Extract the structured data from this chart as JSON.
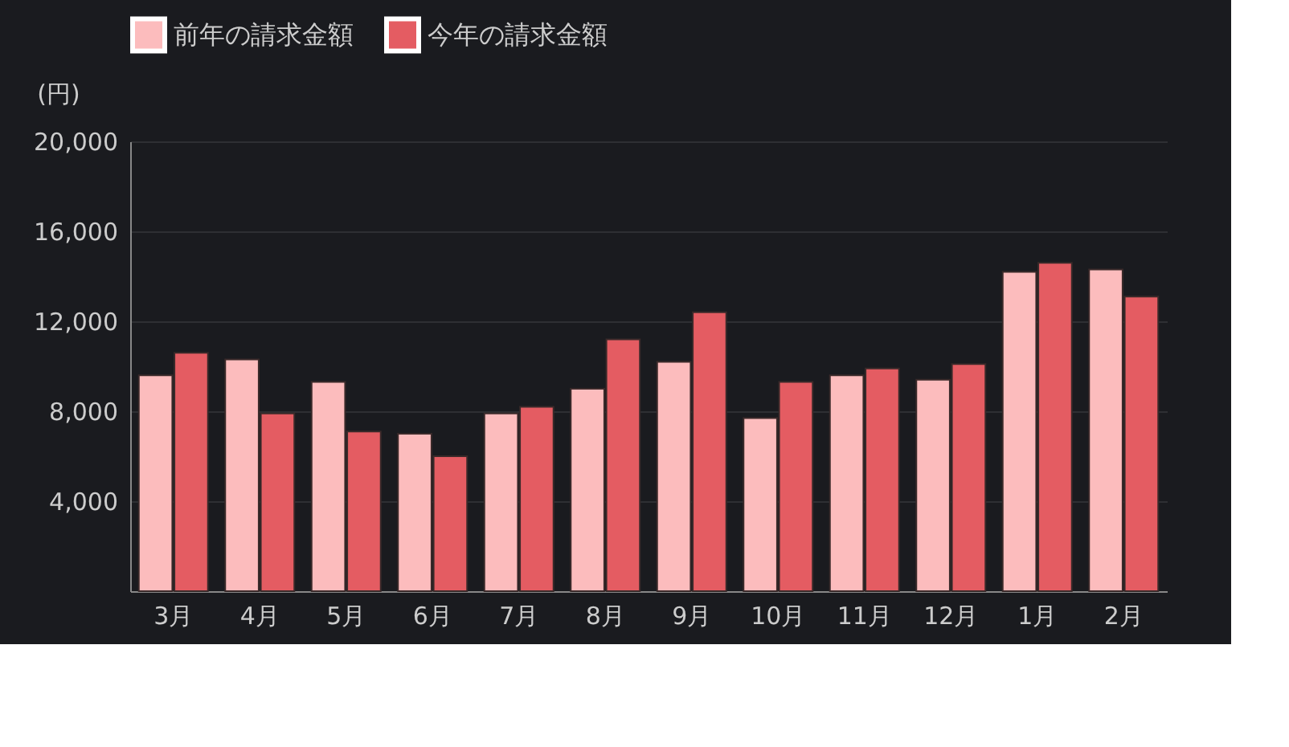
{
  "chart_data": {
    "type": "bar",
    "ylabel": "(円)",
    "categories": [
      "3月",
      "4月",
      "5月",
      "6月",
      "7月",
      "8月",
      "9月",
      "10月",
      "11月",
      "12月",
      "1月",
      "2月"
    ],
    "series": [
      {
        "name": "前年の請求金額",
        "color": "#fcbcbd",
        "values": [
          9600,
          10300,
          9300,
          7000,
          7900,
          9000,
          10200,
          7700,
          9600,
          9400,
          14200,
          14300
        ]
      },
      {
        "name": "今年の請求金額",
        "color": "#e45c62",
        "values": [
          10600,
          7900,
          7100,
          6000,
          8200,
          11200,
          12400,
          9300,
          9900,
          10100,
          14600,
          13100
        ]
      }
    ],
    "ylim": [
      0,
      20000
    ],
    "yticks": [
      {
        "value": 4000,
        "label": "4,000"
      },
      {
        "value": 8000,
        "label": "8,000"
      },
      {
        "value": 12000,
        "label": "12,000"
      },
      {
        "value": 16000,
        "label": "16,000"
      },
      {
        "value": 20000,
        "label": "20,000"
      }
    ],
    "grid": "y",
    "legend": "top left"
  }
}
